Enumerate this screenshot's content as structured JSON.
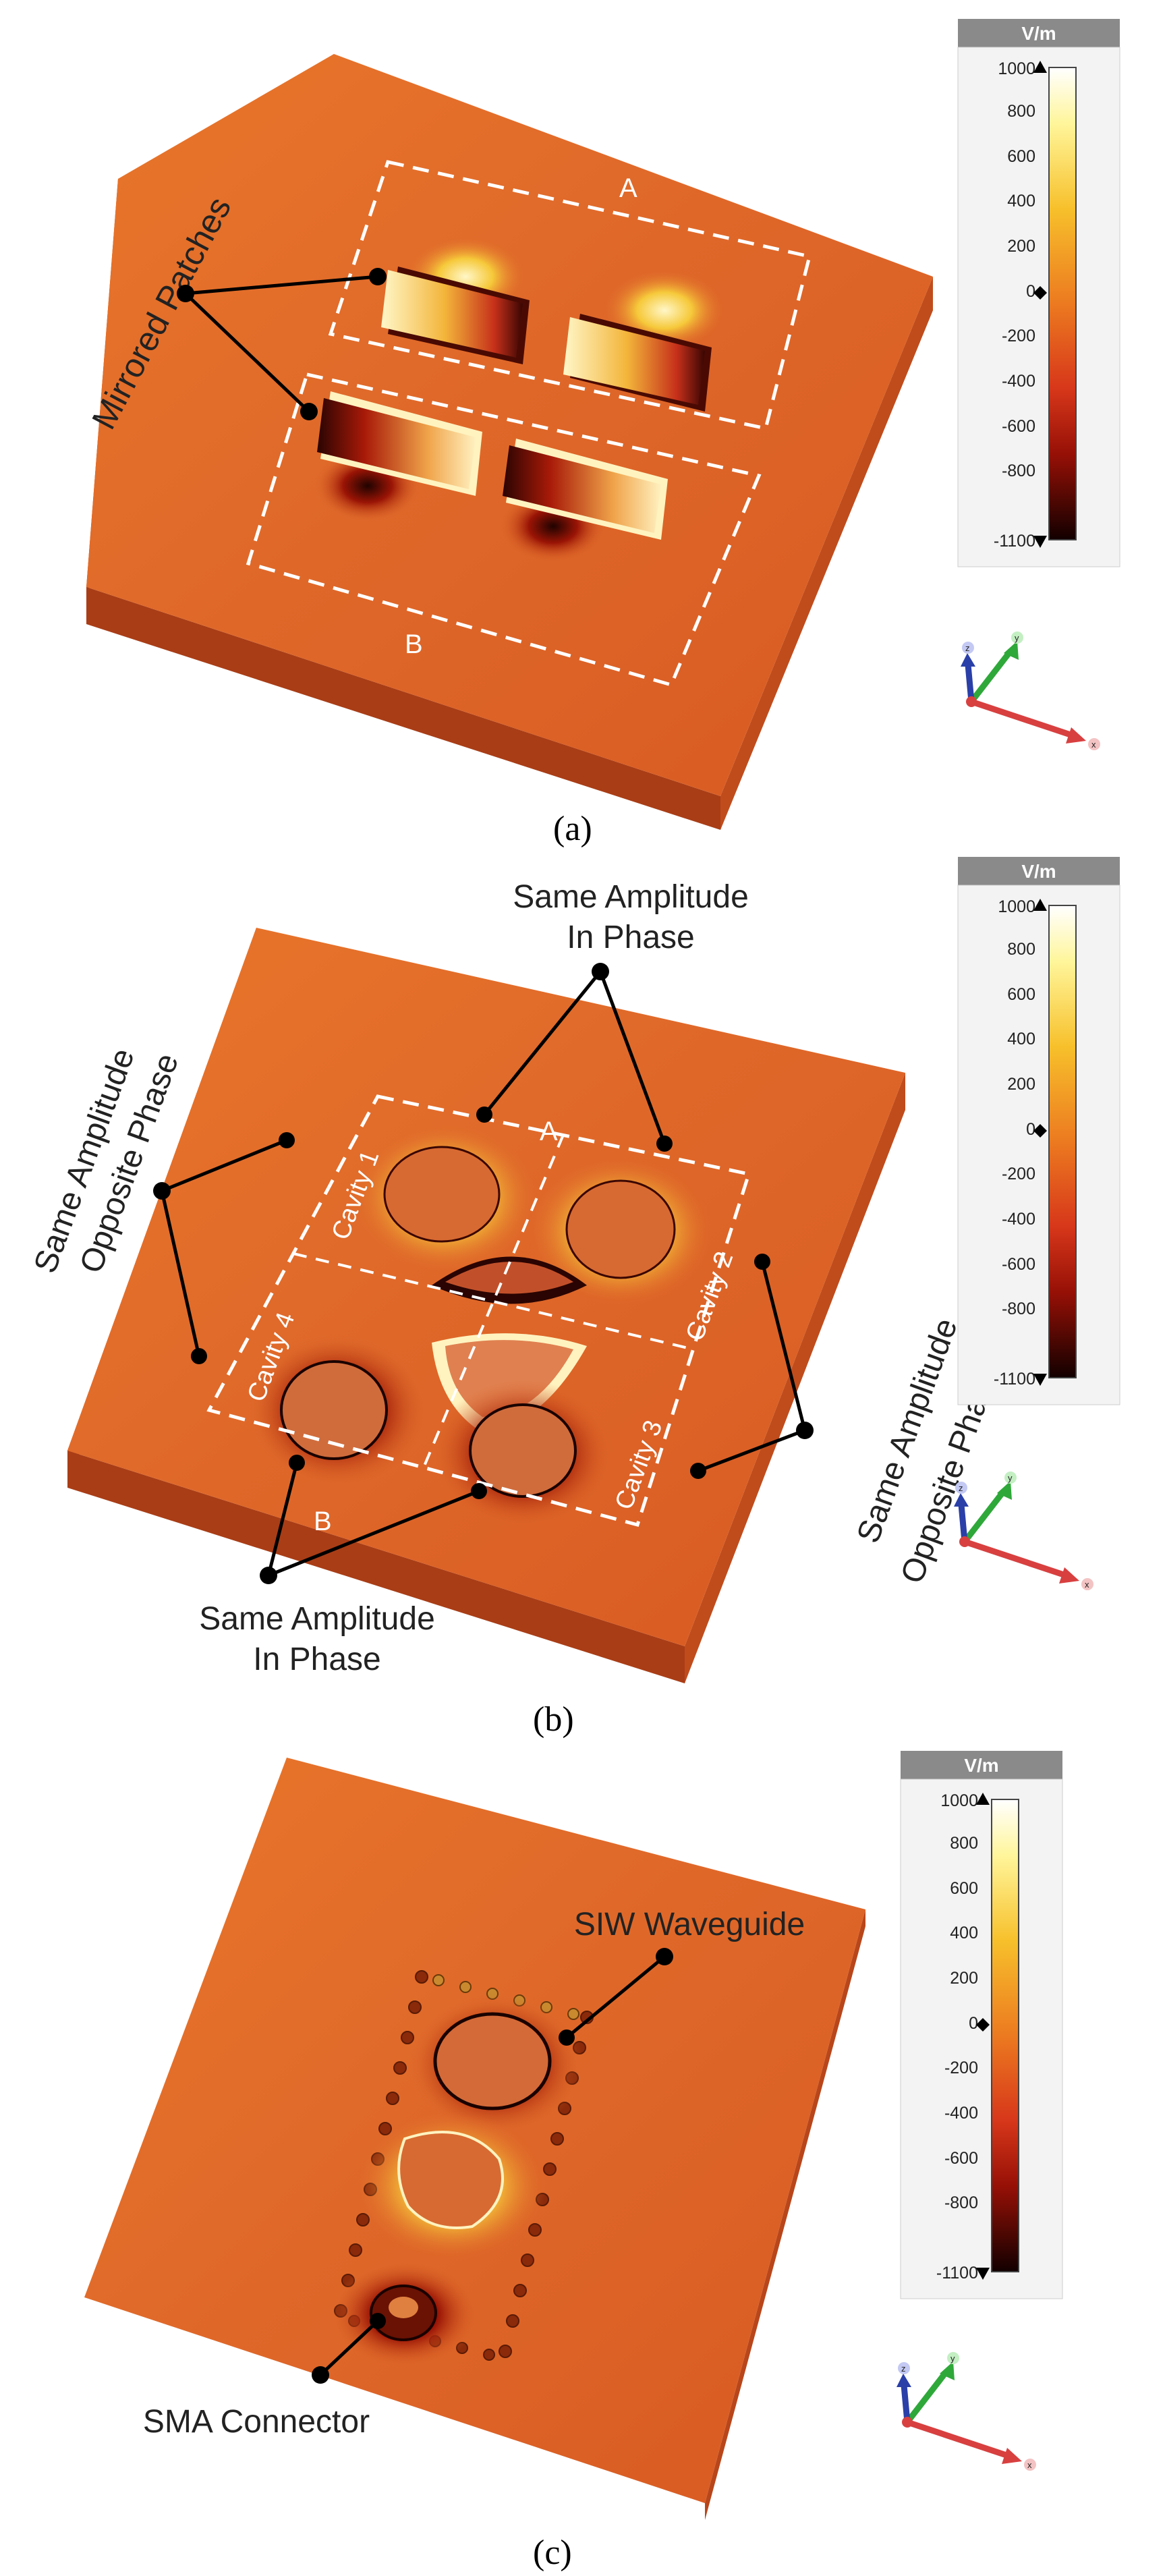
{
  "panels": {
    "a": {
      "caption": "(a)",
      "region_a": "A",
      "region_b": "B",
      "callout": "Mirrored Patches"
    },
    "b": {
      "caption": "(b)",
      "region_a": "A",
      "region_b": "B",
      "cavity_1": "Cavity 1",
      "cavity_2": "Cavity 2",
      "cavity_3": "Cavity 3",
      "cavity_4": "Cavity 4",
      "top_callout_line1": "Same Amplitude",
      "top_callout_line2": "In Phase",
      "bottom_callout_line1": "Same Amplitude",
      "bottom_callout_line2": "In Phase",
      "left_callout_line1": "Same Amplitude",
      "left_callout_line2": "Opposite Phase",
      "right_callout_line1": "Same Amplitude",
      "right_callout_line2": "Opposite Phase"
    },
    "c": {
      "caption": "(c)",
      "callout_waveguide": "SIW Waveguide",
      "callout_connector": "SMA Connector"
    }
  },
  "colorbar": {
    "unit": "V/m",
    "ticks": [
      "1000",
      "800",
      "600",
      "400",
      "200",
      "0",
      "-200",
      "-400",
      "-600",
      "-800",
      "-1100"
    ]
  },
  "axes_triad": {
    "x": "x",
    "y": "y",
    "z": "z"
  },
  "colors": {
    "substrate": "#e06a2a",
    "hot": "#fff6c0",
    "cold": "#2a0400",
    "axis_x": "#d84040",
    "axis_y": "#2fa83a",
    "axis_z": "#2a3fa8"
  }
}
